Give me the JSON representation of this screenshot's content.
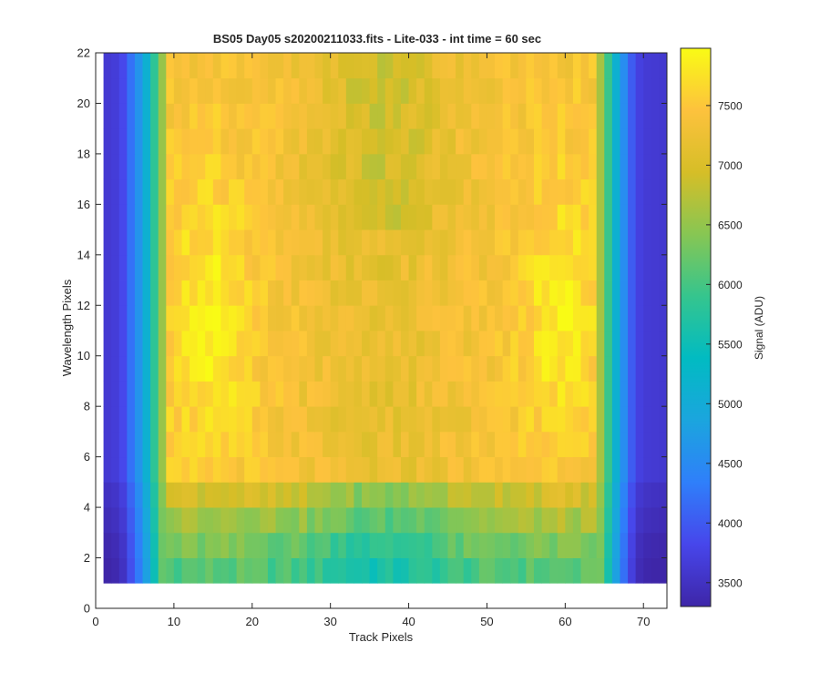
{
  "chart_data": {
    "type": "heatmap",
    "title": "BS05 Day05  s20200211033.fits - Lite-033 - int time = 60 sec",
    "xlabel": "Track Pixels",
    "ylabel": "Wavelength Pixels",
    "colorbar_label": "Signal (ADU)",
    "xlim": [
      0,
      73
    ],
    "ylim": [
      0,
      22
    ],
    "x_ticks": [
      0,
      10,
      20,
      30,
      40,
      50,
      60,
      70
    ],
    "y_ticks": [
      0,
      2,
      4,
      6,
      8,
      10,
      12,
      14,
      16,
      18,
      20,
      22
    ],
    "colorbar_ticks": [
      3500,
      4000,
      4500,
      5000,
      5500,
      6000,
      6500,
      7000,
      7500
    ],
    "clim": [
      3300,
      7980
    ],
    "grid": false,
    "colormap": "parula",
    "colormap_stops": [
      "#3e26a8",
      "#4746eb",
      "#2f7ffa",
      "#1ba5de",
      "#01bbc2",
      "#35c58e",
      "#87c653",
      "#d6be27",
      "#fdc23d",
      "#f9fb15"
    ],
    "columns": {
      "start": 1,
      "count": 72
    },
    "rows": {
      "start": 1,
      "count": 21
    },
    "column_profile_adu": {
      "cols_1_to_8": [
        3500,
        3550,
        3700,
        4100,
        4500,
        5000,
        5700,
        6400
      ],
      "cols_9_to_63": 7300,
      "cols_64_to_72": [
        6500,
        5800,
        5000,
        4400,
        3900,
        3600,
        3520,
        3500,
        3480
      ]
    },
    "row_profile_adu": {
      "rows_1_to_4": [
        6100,
        6300,
        6600,
        6900
      ],
      "rows_5_to_21": 7400
    },
    "approx_peak_adu": 7900,
    "approx_min_adu": 3400
  }
}
